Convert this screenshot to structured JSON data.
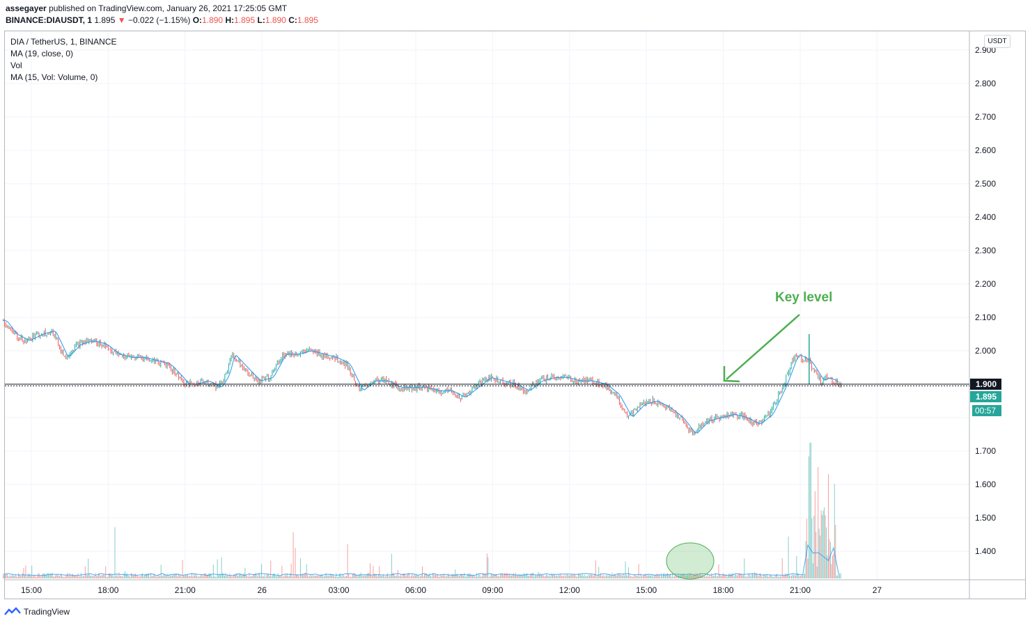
{
  "header": {
    "user": "assegayer",
    "published_text": "published on TradingView.com, January 26, 2021 17:25:05 GMT",
    "symbol_line": "BINANCE:DIAUSDT, 1",
    "last_price": "1.895",
    "change": "−0.022 (−1.15%)",
    "o_label": "O:",
    "o_value": "1.890",
    "h_label": "H:",
    "h_value": "1.895",
    "l_label": "L:",
    "l_value": "1.890",
    "c_label": "C:",
    "c_value": "1.895"
  },
  "legend": {
    "title": "DIA / TetherUS, 1, BINANCE",
    "ma": "MA (19, close, 0)",
    "vol": "Vol",
    "vol_ma": "MA (15, Vol: Volume, 0)"
  },
  "axis_badge": "USDT",
  "footer": {
    "brand": "TradingView"
  },
  "annotation": {
    "text": "Key level",
    "color": "#4caf50"
  },
  "colors": {
    "up": "#26a69a",
    "down": "#ef5350",
    "ma": "#2196f3",
    "grid": "#f0f3fa",
    "key_line": "#131722",
    "price_tag": "#26a69a",
    "annotation": "#4caf50"
  },
  "chart_data": {
    "type": "line",
    "y_axis": {
      "ticks": [
        "2.900",
        "2.800",
        "2.700",
        "2.600",
        "2.500",
        "2.400",
        "2.300",
        "2.200",
        "2.100",
        "2.000",
        "1.900",
        "1.700",
        "1.600",
        "1.500",
        "1.400"
      ],
      "range": [
        1.32,
        2.92
      ]
    },
    "x_axis": {
      "ticks": [
        "15:00",
        "18:00",
        "21:00",
        "26",
        "03:00",
        "06:00",
        "09:00",
        "12:00",
        "15:00",
        "18:00",
        "21:00",
        "27"
      ],
      "range_hours": [
        13.75,
        51.5
      ]
    },
    "key_level": {
      "value": 1.9,
      "label": "1.900"
    },
    "last_price_tag": {
      "value": 1.895,
      "label": "1.895",
      "countdown": "00:57"
    },
    "series": [
      {
        "x_hours": [
          13.9,
          14.3,
          14.8,
          15.3,
          15.8,
          16.3,
          16.8,
          17.3,
          17.8,
          18.3,
          18.8,
          19.3,
          19.8,
          20.3,
          20.8,
          21.0,
          21.3,
          21.8,
          22.3,
          22.6,
          22.8,
          23.3,
          23.8,
          24.3,
          24.8,
          25.3,
          25.8,
          26.3,
          26.8,
          27.3,
          27.8,
          28.3,
          28.8,
          29.3,
          29.8,
          30.3,
          30.8,
          31.3,
          31.8,
          32.3,
          32.8,
          33.3,
          33.8,
          34.3,
          34.8,
          35.3,
          35.8,
          36.3,
          36.8,
          37.3,
          37.8,
          38.3,
          38.8,
          39.3,
          39.8,
          40.3,
          40.8,
          41.3,
          41.8,
          42.3,
          42.8,
          43.3,
          43.8,
          44.3,
          44.8,
          45.3,
          45.8,
          46.0,
          46.3,
          46.6
        ],
        "close": [
          2.09,
          2.05,
          2.03,
          2.05,
          2.06,
          1.98,
          2.02,
          2.03,
          2.02,
          1.99,
          1.98,
          1.98,
          1.97,
          1.96,
          1.92,
          1.9,
          1.9,
          1.91,
          1.89,
          1.93,
          1.99,
          1.95,
          1.91,
          1.92,
          1.99,
          1.99,
          2.0,
          1.99,
          1.98,
          1.96,
          1.88,
          1.91,
          1.91,
          1.89,
          1.89,
          1.89,
          1.88,
          1.88,
          1.86,
          1.89,
          1.92,
          1.91,
          1.9,
          1.88,
          1.91,
          1.92,
          1.92,
          1.91,
          1.91,
          1.9,
          1.87,
          1.8,
          1.84,
          1.85,
          1.83,
          1.8,
          1.75,
          1.79,
          1.8,
          1.81,
          1.8,
          1.78,
          1.81,
          1.89,
          1.99,
          1.97,
          1.91,
          1.92,
          1.91,
          1.895
        ]
      }
    ]
  }
}
